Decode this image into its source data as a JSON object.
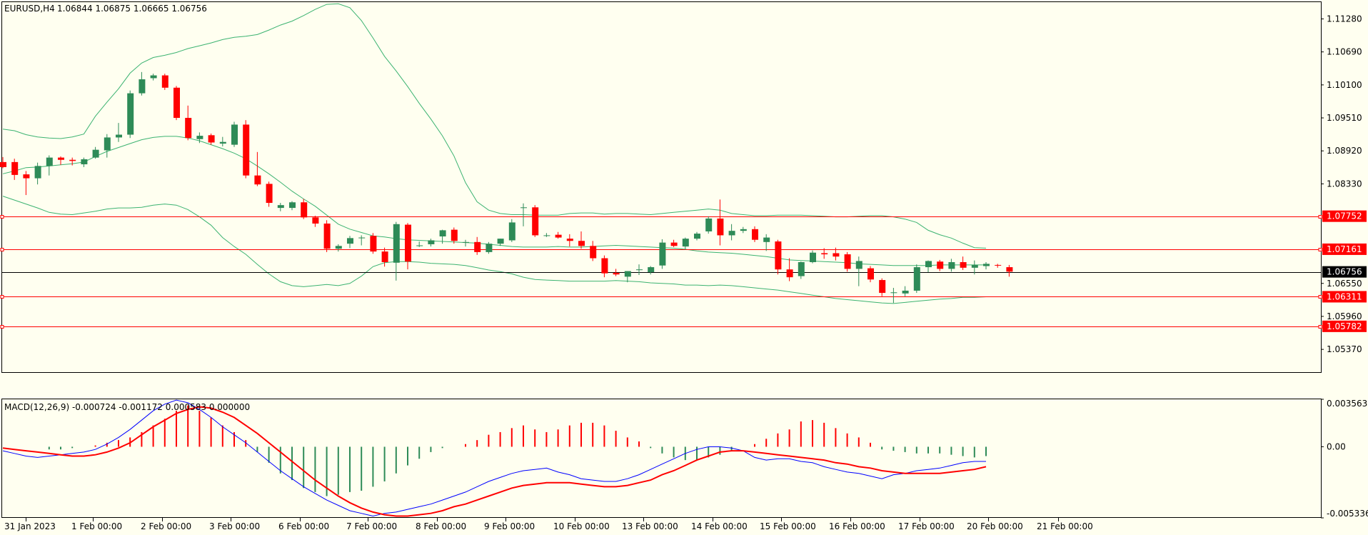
{
  "header": {
    "symbol": "EURUSD,H4",
    "ohlc": "1.06844 1.06875 1.06665 1.06756"
  },
  "colors": {
    "background": "#fffff0",
    "bull": "#2e8b57",
    "bear": "#ff0000",
    "bands": "#3cb371",
    "level_line": "#ff0000",
    "price_line": "#000000",
    "macd_line": "#0000ff",
    "signal_line": "#ff0000"
  },
  "chart_data": [
    {
      "type": "candlestick",
      "title": "EURUSD,H4",
      "x_labels": [
        "31 Jan 2023",
        "1 Feb 00:00",
        "2 Feb 00:00",
        "3 Feb 00:00",
        "6 Feb 00:00",
        "7 Feb 00:00",
        "8 Feb 00:00",
        "9 Feb 00:00",
        "10 Feb 00:00",
        "13 Feb 00:00",
        "14 Feb 00:00",
        "15 Feb 00:00",
        "16 Feb 00:00",
        "17 Feb 00:00",
        "20 Feb 00:00",
        "21 Feb 00:00"
      ],
      "y_ticks": [
        "1.11280",
        "1.10690",
        "1.10100",
        "1.09510",
        "1.08920",
        "1.08330",
        "1.06550",
        "1.05960",
        "1.05370"
      ],
      "ylim": [
        1.0495,
        1.1158
      ],
      "candles": [
        [
          1.0872,
          1.0881,
          1.0861,
          1.0863
        ],
        [
          1.0872,
          1.0878,
          1.084,
          1.0849
        ],
        [
          1.085,
          1.0856,
          1.0813,
          1.0843
        ],
        [
          1.0843,
          1.0871,
          1.0832,
          1.0865
        ],
        [
          1.0865,
          1.0884,
          1.0848,
          1.088
        ],
        [
          1.088,
          1.0882,
          1.0867,
          1.0876
        ],
        [
          1.0876,
          1.088,
          1.0866,
          1.0874
        ],
        [
          1.0868,
          1.088,
          1.0863,
          1.0877
        ],
        [
          1.088,
          1.0899,
          1.0878,
          1.0894
        ],
        [
          1.0893,
          1.0922,
          1.088,
          1.0916
        ],
        [
          1.0916,
          1.0942,
          1.0908,
          1.0921
        ],
        [
          1.0921,
          1.1,
          1.0915,
          1.0995
        ],
        [
          1.0995,
          1.1033,
          1.0991,
          1.102
        ],
        [
          1.1022,
          1.103,
          1.1018,
          1.1027
        ],
        [
          1.1027,
          1.103,
          1.1001,
          1.1005
        ],
        [
          1.1005,
          1.1008,
          1.0947,
          1.0951
        ],
        [
          1.0951,
          1.0973,
          1.0911,
          1.0915
        ],
        [
          1.0913,
          1.0925,
          1.0906,
          1.0919
        ],
        [
          1.092,
          1.0923,
          1.0903,
          1.0907
        ],
        [
          1.0905,
          1.0917,
          1.09,
          1.0908
        ],
        [
          1.0903,
          1.0944,
          1.0899,
          1.0939
        ],
        [
          1.0939,
          1.0947,
          1.0843,
          1.0848
        ],
        [
          1.0848,
          1.089,
          1.0829,
          1.0832
        ],
        [
          1.0833,
          1.0837,
          1.0792,
          1.0799
        ],
        [
          1.079,
          1.0799,
          1.0784,
          1.0795
        ],
        [
          1.079,
          1.0802,
          1.0786,
          1.08
        ],
        [
          1.08,
          1.0806,
          1.077,
          1.0773
        ],
        [
          1.0773,
          1.0776,
          1.0756,
          1.0762
        ],
        [
          1.0762,
          1.0768,
          1.0711,
          1.0717
        ],
        [
          1.0717,
          1.0725,
          1.0712,
          1.0722
        ],
        [
          1.0726,
          1.074,
          1.0718,
          1.0736
        ],
        [
          1.0736,
          1.0741,
          1.0723,
          1.0737
        ],
        [
          1.074,
          1.0745,
          1.0708,
          1.0712
        ],
        [
          1.0712,
          1.0719,
          1.0685,
          1.0693
        ],
        [
          1.0692,
          1.0765,
          1.066,
          1.0761
        ],
        [
          1.076,
          1.0763,
          1.068,
          1.0694
        ],
        [
          1.0723,
          1.073,
          1.072,
          1.0723
        ],
        [
          1.0725,
          1.0735,
          1.0721,
          1.0732
        ],
        [
          1.0739,
          1.0751,
          1.0726,
          1.075
        ],
        [
          1.0751,
          1.0755,
          1.0726,
          1.0731
        ],
        [
          1.0729,
          1.0733,
          1.0721,
          1.0729
        ],
        [
          1.0729,
          1.0738,
          1.0706,
          1.0711
        ],
        [
          1.0711,
          1.0729,
          1.0708,
          1.0726
        ],
        [
          1.0726,
          1.0735,
          1.0722,
          1.0735
        ],
        [
          1.0732,
          1.077,
          1.0729,
          1.0764
        ],
        [
          1.0791,
          1.0798,
          1.0757,
          1.0791
        ],
        [
          1.0791,
          1.0795,
          1.0738,
          1.0741
        ],
        [
          1.0741,
          1.0745,
          1.0738,
          1.0741
        ],
        [
          1.0742,
          1.0747,
          1.0735,
          1.0737
        ],
        [
          1.0735,
          1.0743,
          1.0721,
          1.0731
        ],
        [
          1.0731,
          1.0748,
          1.0717,
          1.0722
        ],
        [
          1.0722,
          1.0731,
          1.0695,
          1.07
        ],
        [
          1.07,
          1.0705,
          1.0666,
          1.0673
        ],
        [
          1.0674,
          1.0681,
          1.0668,
          1.0671
        ],
        [
          1.0667,
          1.0677,
          1.0657,
          1.0677
        ],
        [
          1.0679,
          1.0689,
          1.067,
          1.068
        ],
        [
          1.0675,
          1.0686,
          1.0671,
          1.0684
        ],
        [
          1.0687,
          1.0734,
          1.0681,
          1.0728
        ],
        [
          1.0728,
          1.0733,
          1.072,
          1.0722
        ],
        [
          1.0721,
          1.0737,
          1.0715,
          1.0735
        ],
        [
          1.0735,
          1.0747,
          1.0732,
          1.0744
        ],
        [
          1.0748,
          1.0775,
          1.0744,
          1.0771
        ],
        [
          1.0771,
          1.0805,
          1.0723,
          1.0741
        ],
        [
          1.0741,
          1.0761,
          1.0732,
          1.0749
        ],
        [
          1.0749,
          1.0756,
          1.0745,
          1.0752
        ],
        [
          1.0752,
          1.0757,
          1.0729,
          1.0733
        ],
        [
          1.0729,
          1.0743,
          1.0713,
          1.0737
        ],
        [
          1.073,
          1.0733,
          1.0671,
          1.068
        ],
        [
          1.068,
          1.07,
          1.0659,
          1.0666
        ],
        [
          1.0668,
          1.0694,
          1.0663,
          1.0693
        ],
        [
          1.0693,
          1.0714,
          1.0691,
          1.071
        ],
        [
          1.0709,
          1.0718,
          1.0699,
          1.0707
        ],
        [
          1.0709,
          1.0719,
          1.0696,
          1.0703
        ],
        [
          1.0707,
          1.0711,
          1.0676,
          1.0681
        ],
        [
          1.0681,
          1.0703,
          1.065,
          1.0695
        ],
        [
          1.0682,
          1.0686,
          1.0657,
          1.0662
        ],
        [
          1.0661,
          1.0664,
          1.0632,
          1.0638
        ],
        [
          1.0638,
          1.0647,
          1.062,
          1.0639
        ],
        [
          1.0637,
          1.065,
          1.0632,
          1.0642
        ],
        [
          1.0642,
          1.0689,
          1.0638,
          1.0684
        ],
        [
          1.0684,
          1.0696,
          1.0675,
          1.0695
        ],
        [
          1.0694,
          1.0697,
          1.0677,
          1.0681
        ],
        [
          1.0681,
          1.0699,
          1.0676,
          1.0693
        ],
        [
          1.0693,
          1.0703,
          1.0679,
          1.0683
        ],
        [
          1.0683,
          1.0696,
          1.0671,
          1.0688
        ],
        [
          1.0686,
          1.0693,
          1.068,
          1.069
        ],
        [
          1.0688,
          1.069,
          1.0683,
          1.0687
        ],
        [
          1.0684,
          1.0688,
          1.0667,
          1.0676
        ]
      ],
      "bollinger": {
        "upper": [
          1.0931,
          1.0928,
          1.0921,
          1.0917,
          1.0915,
          1.0914,
          1.0917,
          1.0922,
          1.0954,
          1.0979,
          1.1003,
          1.1031,
          1.1049,
          1.1059,
          1.1063,
          1.1068,
          1.1075,
          1.108,
          1.1085,
          1.1091,
          1.1095,
          1.1097,
          1.11,
          1.1108,
          1.1117,
          1.1124,
          1.1134,
          1.1145,
          1.1154,
          1.1155,
          1.1148,
          1.1125,
          1.1094,
          1.1061,
          1.1035,
          1.1007,
          1.0977,
          1.0949,
          1.0919,
          1.0883,
          1.0835,
          1.0801,
          1.0786,
          1.078,
          1.0778,
          1.0778,
          1.0777,
          1.0777,
          1.0777,
          1.078,
          1.0781,
          1.0781,
          1.0779,
          1.078,
          1.078,
          1.0779,
          1.0778,
          1.078,
          1.0782,
          1.0784,
          1.0786,
          1.0788,
          1.0786,
          1.078,
          1.0778,
          1.0776,
          1.0776,
          1.0777,
          1.0777,
          1.0777,
          1.0776,
          1.0775,
          1.0774,
          1.0774,
          1.0775,
          1.0776,
          1.0776,
          1.0774,
          1.077,
          1.0764,
          1.075,
          1.0742,
          1.0736,
          1.0727,
          1.0719,
          1.0718
        ],
        "middle": [
          1.0851,
          1.0856,
          1.0862,
          1.0863,
          1.0865,
          1.0867,
          1.0869,
          1.0872,
          1.0882,
          1.0891,
          1.0898,
          1.0905,
          1.0912,
          1.0916,
          1.0918,
          1.0918,
          1.0915,
          1.091,
          1.0903,
          1.0896,
          1.0888,
          1.0878,
          1.0865,
          1.0851,
          1.0836,
          1.082,
          1.0806,
          1.0793,
          1.0777,
          1.0761,
          1.0752,
          1.0746,
          1.074,
          1.0738,
          1.0735,
          1.0733,
          1.0732,
          1.0731,
          1.073,
          1.0729,
          1.0728,
          1.0727,
          1.0725,
          1.0723,
          1.0721,
          1.072,
          1.072,
          1.072,
          1.0721,
          1.072,
          1.072,
          1.0721,
          1.0722,
          1.0723,
          1.0722,
          1.0721,
          1.072,
          1.0719,
          1.0718,
          1.0716,
          1.0713,
          1.0711,
          1.071,
          1.0709,
          1.0707,
          1.0705,
          1.0703,
          1.07,
          1.0697,
          1.0696,
          1.0695,
          1.0694,
          1.0693,
          1.0692,
          1.069,
          1.0689,
          1.0688,
          1.0687,
          1.0687,
          1.0687,
          1.0687,
          1.0688,
          1.0688,
          1.0688,
          1.0688,
          1.0688
        ],
        "lower": [
          1.0811,
          1.0804,
          1.0797,
          1.079,
          1.0782,
          1.0779,
          1.0778,
          1.0781,
          1.0784,
          1.0788,
          1.079,
          1.079,
          1.0791,
          1.0795,
          1.0797,
          1.0795,
          1.0787,
          1.0774,
          1.0759,
          1.0737,
          1.0721,
          1.0707,
          1.0689,
          1.0672,
          1.0658,
          1.0651,
          1.0649,
          1.0651,
          1.0653,
          1.0651,
          1.0655,
          1.0668,
          1.0685,
          1.0692,
          1.0694,
          1.0694,
          1.0693,
          1.0691,
          1.069,
          1.0689,
          1.0687,
          1.0683,
          1.0679,
          1.0676,
          1.0672,
          1.0666,
          1.0662,
          1.0661,
          1.066,
          1.0659,
          1.0659,
          1.0659,
          1.0659,
          1.066,
          1.0659,
          1.0658,
          1.0656,
          1.0655,
          1.0654,
          1.0652,
          1.0652,
          1.0651,
          1.0652,
          1.0651,
          1.0649,
          1.0647,
          1.0645,
          1.0643,
          1.064,
          1.0637,
          1.0634,
          1.0631,
          1.0628,
          1.0626,
          1.0624,
          1.0622,
          1.062,
          1.0619,
          1.0621,
          1.0623,
          1.0625,
          1.0627,
          1.0628,
          1.063,
          1.063,
          1.0631
        ]
      },
      "levels": [
        {
          "value": 1.07752,
          "label": "1.07752",
          "color": "#ff0000"
        },
        {
          "value": 1.07161,
          "label": "1.07161",
          "color": "#ff0000"
        },
        {
          "value": 1.06311,
          "label": "1.06311",
          "color": "#ff0000"
        },
        {
          "value": 1.05782,
          "label": "1.05782",
          "color": "#ff0000"
        }
      ],
      "current_price": {
        "value": 1.06756,
        "label": "1.06756"
      }
    },
    {
      "type": "macd",
      "title": "MACD(12,26,9) -0.000724 -0.001172 0.000583 0.000000",
      "y_ticks": [
        "0.003563",
        "0.00",
        "-0.005336"
      ],
      "ylim": [
        -0.005336,
        0.003563
      ],
      "histogram": [
        0.0,
        0.0,
        0.0,
        0.0,
        -0.0002,
        -0.0002,
        -0.0001,
        0.0,
        0.0001,
        0.0003,
        0.0005,
        0.0007,
        0.0011,
        0.0016,
        0.0021,
        0.0027,
        0.0031,
        0.0027,
        0.0022,
        0.0016,
        0.0011,
        0.0005,
        -0.0004,
        -0.0012,
        -0.002,
        -0.0025,
        -0.0031,
        -0.0034,
        -0.0037,
        -0.0036,
        -0.0034,
        -0.0033,
        -0.003,
        -0.0026,
        -0.002,
        -0.0014,
        -0.0009,
        -0.0004,
        -0.0001,
        0.0,
        0.0002,
        0.0005,
        0.0009,
        0.0011,
        0.0014,
        0.0016,
        0.0013,
        0.0011,
        0.0013,
        0.0016,
        0.0018,
        0.0018,
        0.0016,
        0.0012,
        0.0007,
        0.0004,
        -0.0001,
        -0.0005,
        -0.0008,
        -0.001,
        -0.001,
        -0.0008,
        -0.0006,
        -0.0003,
        0.0,
        0.0002,
        0.0006,
        0.001,
        0.0013,
        0.0019,
        0.002,
        0.0018,
        0.0014,
        0.001,
        0.0007,
        0.0003,
        -0.0002,
        -0.0003,
        -0.0004,
        -0.0005,
        -0.0005,
        -0.0005,
        -0.0006,
        -0.0007,
        -0.0008,
        -0.0007
      ],
      "macd_line": [
        -0.0003,
        -0.0005,
        -0.0007,
        -0.0008,
        -0.0007,
        -0.0006,
        -0.0005,
        -0.0004,
        -0.0002,
        0.0002,
        0.0007,
        0.0013,
        0.002,
        0.0027,
        0.0032,
        0.0035,
        0.0033,
        0.0028,
        0.0022,
        0.0015,
        0.0009,
        0.0003,
        -0.0004,
        -0.0011,
        -0.0018,
        -0.0024,
        -0.003,
        -0.0035,
        -0.004,
        -0.0044,
        -0.0048,
        -0.005,
        -0.0052,
        -0.005,
        -0.0049,
        -0.0047,
        -0.0045,
        -0.0043,
        -0.004,
        -0.0037,
        -0.0034,
        -0.003,
        -0.0026,
        -0.0023,
        -0.002,
        -0.0018,
        -0.0017,
        -0.0016,
        -0.0019,
        -0.0021,
        -0.0024,
        -0.0025,
        -0.0026,
        -0.0026,
        -0.0024,
        -0.0021,
        -0.0017,
        -0.0013,
        -0.0009,
        -0.0005,
        -0.0002,
        0.0,
        0.0,
        -0.0001,
        -0.0003,
        -0.0008,
        -0.001,
        -0.0009,
        -0.0009,
        -0.0011,
        -0.0012,
        -0.0015,
        -0.0017,
        -0.0019,
        -0.002,
        -0.0022,
        -0.0024,
        -0.0021,
        -0.002,
        -0.0018,
        -0.0017,
        -0.0016,
        -0.0014,
        -0.0012,
        -0.0011,
        -0.0011
      ],
      "signal_line": [
        -0.0001,
        -0.0002,
        -0.0003,
        -0.0004,
        -0.0005,
        -0.0006,
        -0.0007,
        -0.0007,
        -0.0006,
        -0.0004,
        -0.0001,
        0.0003,
        0.0009,
        0.0015,
        0.002,
        0.0025,
        0.0028,
        0.003,
        0.0029,
        0.0026,
        0.0022,
        0.0016,
        0.001,
        0.0003,
        -0.0004,
        -0.0011,
        -0.0018,
        -0.0025,
        -0.0031,
        -0.0037,
        -0.0042,
        -0.0046,
        -0.0049,
        -0.0051,
        -0.0052,
        -0.0052,
        -0.0051,
        -0.005,
        -0.0048,
        -0.0045,
        -0.0043,
        -0.004,
        -0.0037,
        -0.0034,
        -0.0031,
        -0.0029,
        -0.0028,
        -0.0027,
        -0.0027,
        -0.0027,
        -0.0028,
        -0.0029,
        -0.003,
        -0.003,
        -0.0029,
        -0.0027,
        -0.0025,
        -0.0021,
        -0.0018,
        -0.0014,
        -0.001,
        -0.0007,
        -0.0004,
        -0.0003,
        -0.0003,
        -0.0004,
        -0.0005,
        -0.0006,
        -0.0007,
        -0.0008,
        -0.0009,
        -0.001,
        -0.0012,
        -0.0013,
        -0.0015,
        -0.0016,
        -0.0018,
        -0.0019,
        -0.002,
        -0.002,
        -0.002,
        -0.002,
        -0.0019,
        -0.0018,
        -0.0017,
        -0.0015
      ]
    }
  ]
}
